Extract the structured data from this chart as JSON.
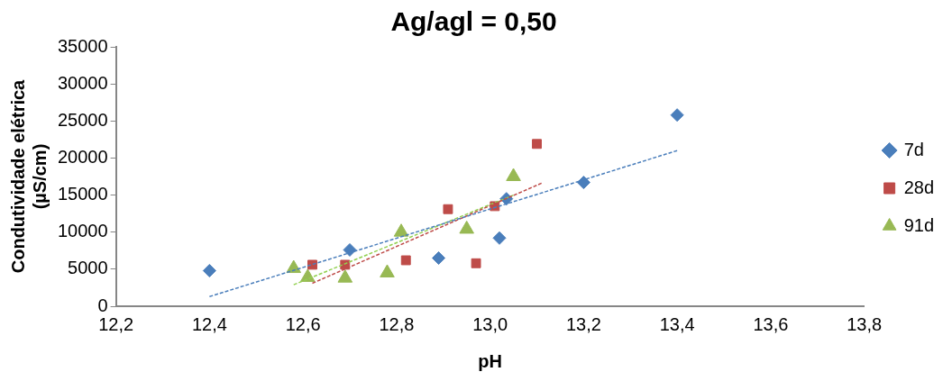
{
  "chart_data": {
    "type": "scatter",
    "title": "Ag/agl = 0,50",
    "xlabel": "pH",
    "ylabel": "Condutividade elétrica (µS/cm)",
    "xlim": [
      12.2,
      13.8
    ],
    "xticks": [
      {
        "value": 12.2,
        "label": "12,2"
      },
      {
        "value": 12.4,
        "label": "12,4"
      },
      {
        "value": 12.6,
        "label": "12,6"
      },
      {
        "value": 12.8,
        "label": "12,8"
      },
      {
        "value": 13.0,
        "label": "13,0"
      },
      {
        "value": 13.2,
        "label": "13,2"
      },
      {
        "value": 13.4,
        "label": "13,4"
      },
      {
        "value": 13.6,
        "label": "13,6"
      },
      {
        "value": 13.8,
        "label": "13,8"
      }
    ],
    "ylim": [
      0,
      35000
    ],
    "yticks": [
      0,
      5000,
      10000,
      15000,
      20000,
      25000,
      30000,
      35000
    ],
    "grid": false,
    "legend": "right",
    "series": [
      {
        "name": "7d",
        "color": "#4a7ebb",
        "marker": "diamond",
        "x": [
          12.4,
          12.7,
          12.89,
          13.02,
          13.035,
          13.2,
          13.4
        ],
        "values": [
          4800,
          7600,
          6500,
          9200,
          14500,
          16700,
          25800
        ]
      },
      {
        "name": "28d",
        "color": "#be4b48",
        "marker": "square",
        "x": [
          12.62,
          12.69,
          12.82,
          12.91,
          12.97,
          13.01,
          13.1
        ],
        "values": [
          5600,
          5600,
          6200,
          13100,
          5800,
          13500,
          21900
        ]
      },
      {
        "name": "91d",
        "color": "#98b954",
        "marker": "triangle",
        "x": [
          12.58,
          12.61,
          12.69,
          12.78,
          12.81,
          12.95,
          13.05
        ],
        "values": [
          5100,
          3900,
          3800,
          4500,
          10000,
          10400,
          17500
        ]
      },
      {
        "type": "line",
        "color": "#4a7ebb",
        "line_style": "dashed",
        "marker": "none",
        "x": [
          12.4,
          13.4
        ],
        "values": [
          1300,
          21000
        ]
      },
      {
        "type": "line",
        "color": "#be4b48",
        "line_style": "dashed",
        "marker": "none",
        "x": [
          12.62,
          13.11
        ],
        "values": [
          3100,
          16600
        ]
      },
      {
        "type": "line",
        "color": "#92d050",
        "line_style": "dashed",
        "marker": "none",
        "x": [
          12.58,
          13.05
        ],
        "values": [
          2900,
          15000
        ]
      }
    ]
  }
}
